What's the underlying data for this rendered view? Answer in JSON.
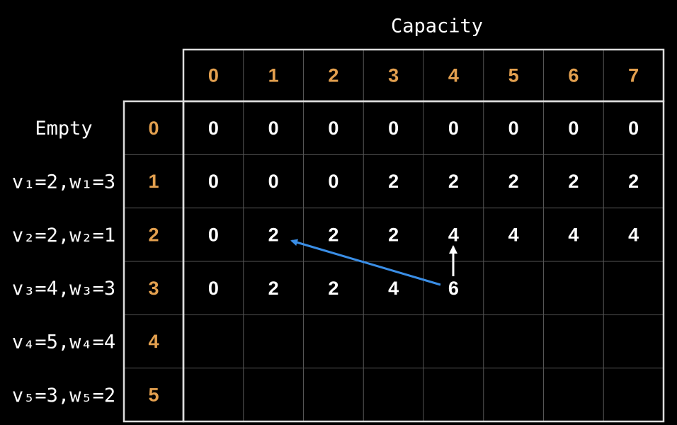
{
  "title": "Capacity",
  "capacities": [
    0,
    1,
    2,
    3,
    4,
    5,
    6,
    7
  ],
  "items": [
    {
      "index": 0,
      "label": "Empty"
    },
    {
      "index": 1,
      "label": "v₁=2,w₁=3"
    },
    {
      "index": 2,
      "label": "v₂=2,w₂=1"
    },
    {
      "index": 3,
      "label": "v₃=4,w₃=3"
    },
    {
      "index": 4,
      "label": "v₄=5,w₄=4"
    },
    {
      "index": 5,
      "label": "v₅=3,w₅=2"
    }
  ],
  "table": {
    "rows": [
      [
        0,
        0,
        0,
        0,
        0,
        0,
        0,
        0
      ],
      [
        0,
        0,
        0,
        2,
        2,
        2,
        2,
        2
      ],
      [
        0,
        2,
        2,
        2,
        4,
        4,
        4,
        4
      ],
      [
        0,
        2,
        2,
        4,
        6
      ],
      [],
      []
    ]
  }
}
